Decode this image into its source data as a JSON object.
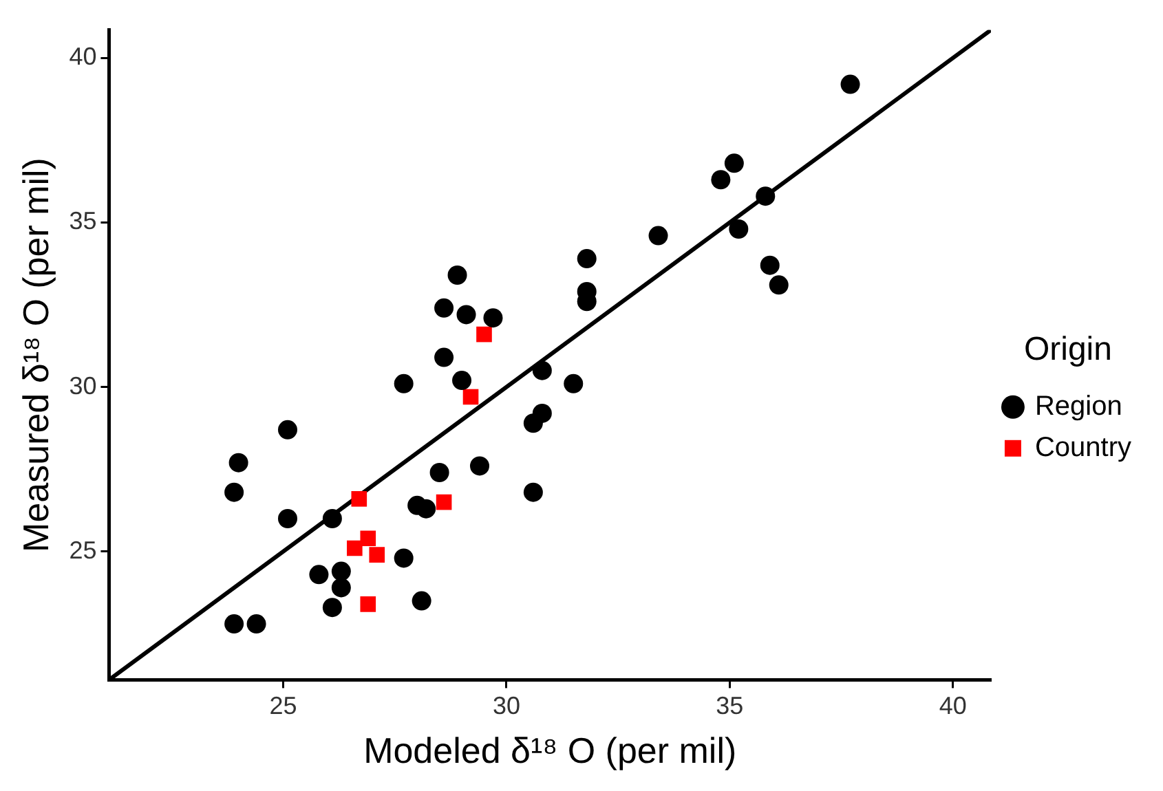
{
  "chart_data": {
    "type": "scatter",
    "xlabel": "Modeled δ¹⁸ O (per mil)",
    "ylabel": "Measured δ¹⁸ O (per mil)",
    "legend_title": "Origin",
    "legend": "right",
    "grid": false,
    "xlim": [
      21.1,
      40.85
    ],
    "ylim": [
      21.1,
      40.85
    ],
    "xticks": [
      25,
      30,
      35,
      40
    ],
    "yticks": [
      25,
      30,
      35,
      40
    ],
    "series": [
      {
        "name": "Region",
        "color": "#000000",
        "marker": "circle",
        "x": [
          37.7,
          35.1,
          34.8,
          35.8,
          33.4,
          35.2,
          31.8,
          35.9,
          36.1,
          31.8,
          31.8,
          28.9,
          28.6,
          29.1,
          29.7,
          28.6,
          27.7,
          29.0,
          30.8,
          31.5,
          30.8,
          30.6,
          25.1,
          24.0,
          23.9,
          28.5,
          29.4,
          30.6,
          25.1,
          26.1,
          28.0,
          28.2,
          27.7,
          25.8,
          26.3,
          26.3,
          26.1,
          28.1,
          23.9,
          24.4
        ],
        "values": [
          39.2,
          36.8,
          36.3,
          35.8,
          34.6,
          34.8,
          33.9,
          33.7,
          33.1,
          32.9,
          32.6,
          33.4,
          32.4,
          32.2,
          32.1,
          30.9,
          30.1,
          30.2,
          30.5,
          30.1,
          29.2,
          28.9,
          28.7,
          27.7,
          26.8,
          27.4,
          27.6,
          26.8,
          26.0,
          26.0,
          26.4,
          26.3,
          24.8,
          24.3,
          24.4,
          23.9,
          23.3,
          23.5,
          22.8,
          22.8
        ]
      },
      {
        "name": "Country",
        "color": "#ff0000",
        "marker": "square",
        "x": [
          29.5,
          29.2,
          26.7,
          28.6,
          26.9,
          26.6,
          27.1,
          26.9
        ],
        "values": [
          31.6,
          29.7,
          26.6,
          26.5,
          25.4,
          25.1,
          24.9,
          23.4
        ]
      },
      {
        "type": "line",
        "color": "#000000",
        "marker": "none",
        "line_style": "solid",
        "x": [
          21.1,
          40.85
        ],
        "values": [
          21.1,
          40.85
        ]
      }
    ]
  }
}
